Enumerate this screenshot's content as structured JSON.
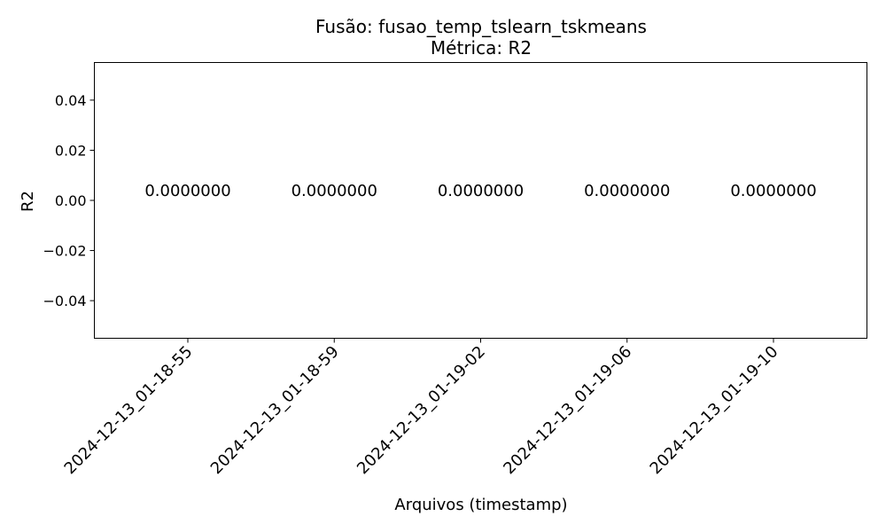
{
  "chart_data": {
    "type": "bar",
    "title": "Fusão: fusao_temp_tslearn_tskmeans",
    "subtitle": "Métrica: R2",
    "xlabel": "Arquivos (timestamp)",
    "ylabel": "R2",
    "categories": [
      "2024-12-13_01-18-55",
      "2024-12-13_01-18-59",
      "2024-12-13_01-19-02",
      "2024-12-13_01-19-06",
      "2024-12-13_01-19-10"
    ],
    "values": [
      0,
      0,
      0,
      0,
      0
    ],
    "data_labels": [
      "0.0000000",
      "0.0000000",
      "0.0000000",
      "0.0000000",
      "0.0000000"
    ],
    "ylim": [
      -0.055,
      0.055
    ],
    "yticks": [
      -0.04,
      -0.02,
      0.0,
      0.02,
      0.04
    ],
    "ytick_labels": [
      "−0.04",
      "−0.02",
      "0.00",
      "0.02",
      "0.04"
    ],
    "grid": false,
    "colors": {
      "axes": "#000000",
      "text": "#000000",
      "background": "#ffffff"
    }
  }
}
